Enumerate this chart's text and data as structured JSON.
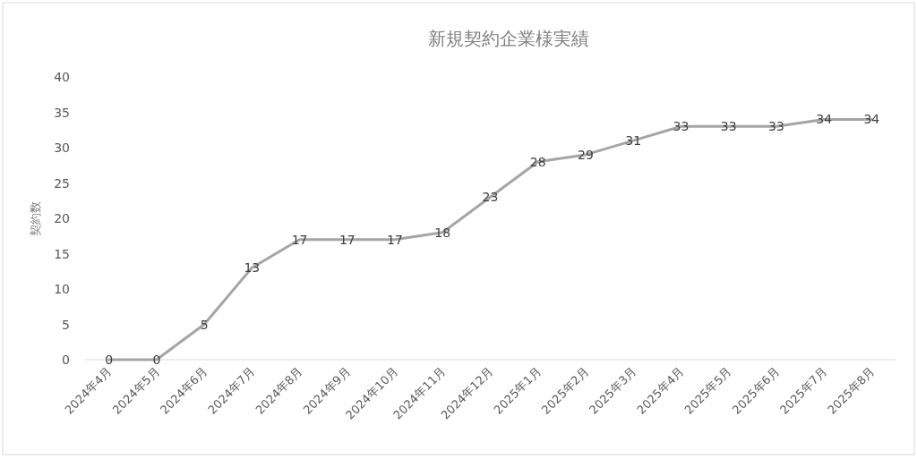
{
  "chart_data": {
    "type": "line",
    "title": "新規契約企業様実績",
    "ylabel": "契約数",
    "categories": [
      "2024年4月",
      "2024年5月",
      "2024年6月",
      "2024年7月",
      "2024年8月",
      "2024年9月",
      "2024年10月",
      "2024年11月",
      "2024年12月",
      "2025年1月",
      "2025年2月",
      "2025年3月",
      "2025年4月",
      "2025年5月",
      "2025年6月",
      "2025年7月",
      "2025年8月"
    ],
    "series": [
      {
        "color": "#a5a5a5",
        "values": [
          0,
          0,
          5,
          13,
          17,
          17,
          17,
          18,
          23,
          28,
          29,
          31,
          33,
          33,
          33,
          34,
          34
        ]
      }
    ],
    "ylim": [
      0,
      40
    ],
    "yticks": [
      0,
      5,
      10,
      15,
      20,
      25,
      30,
      35,
      40
    ],
    "grid": false,
    "marker": "none",
    "line_style": "solid",
    "data_labels": true
  }
}
